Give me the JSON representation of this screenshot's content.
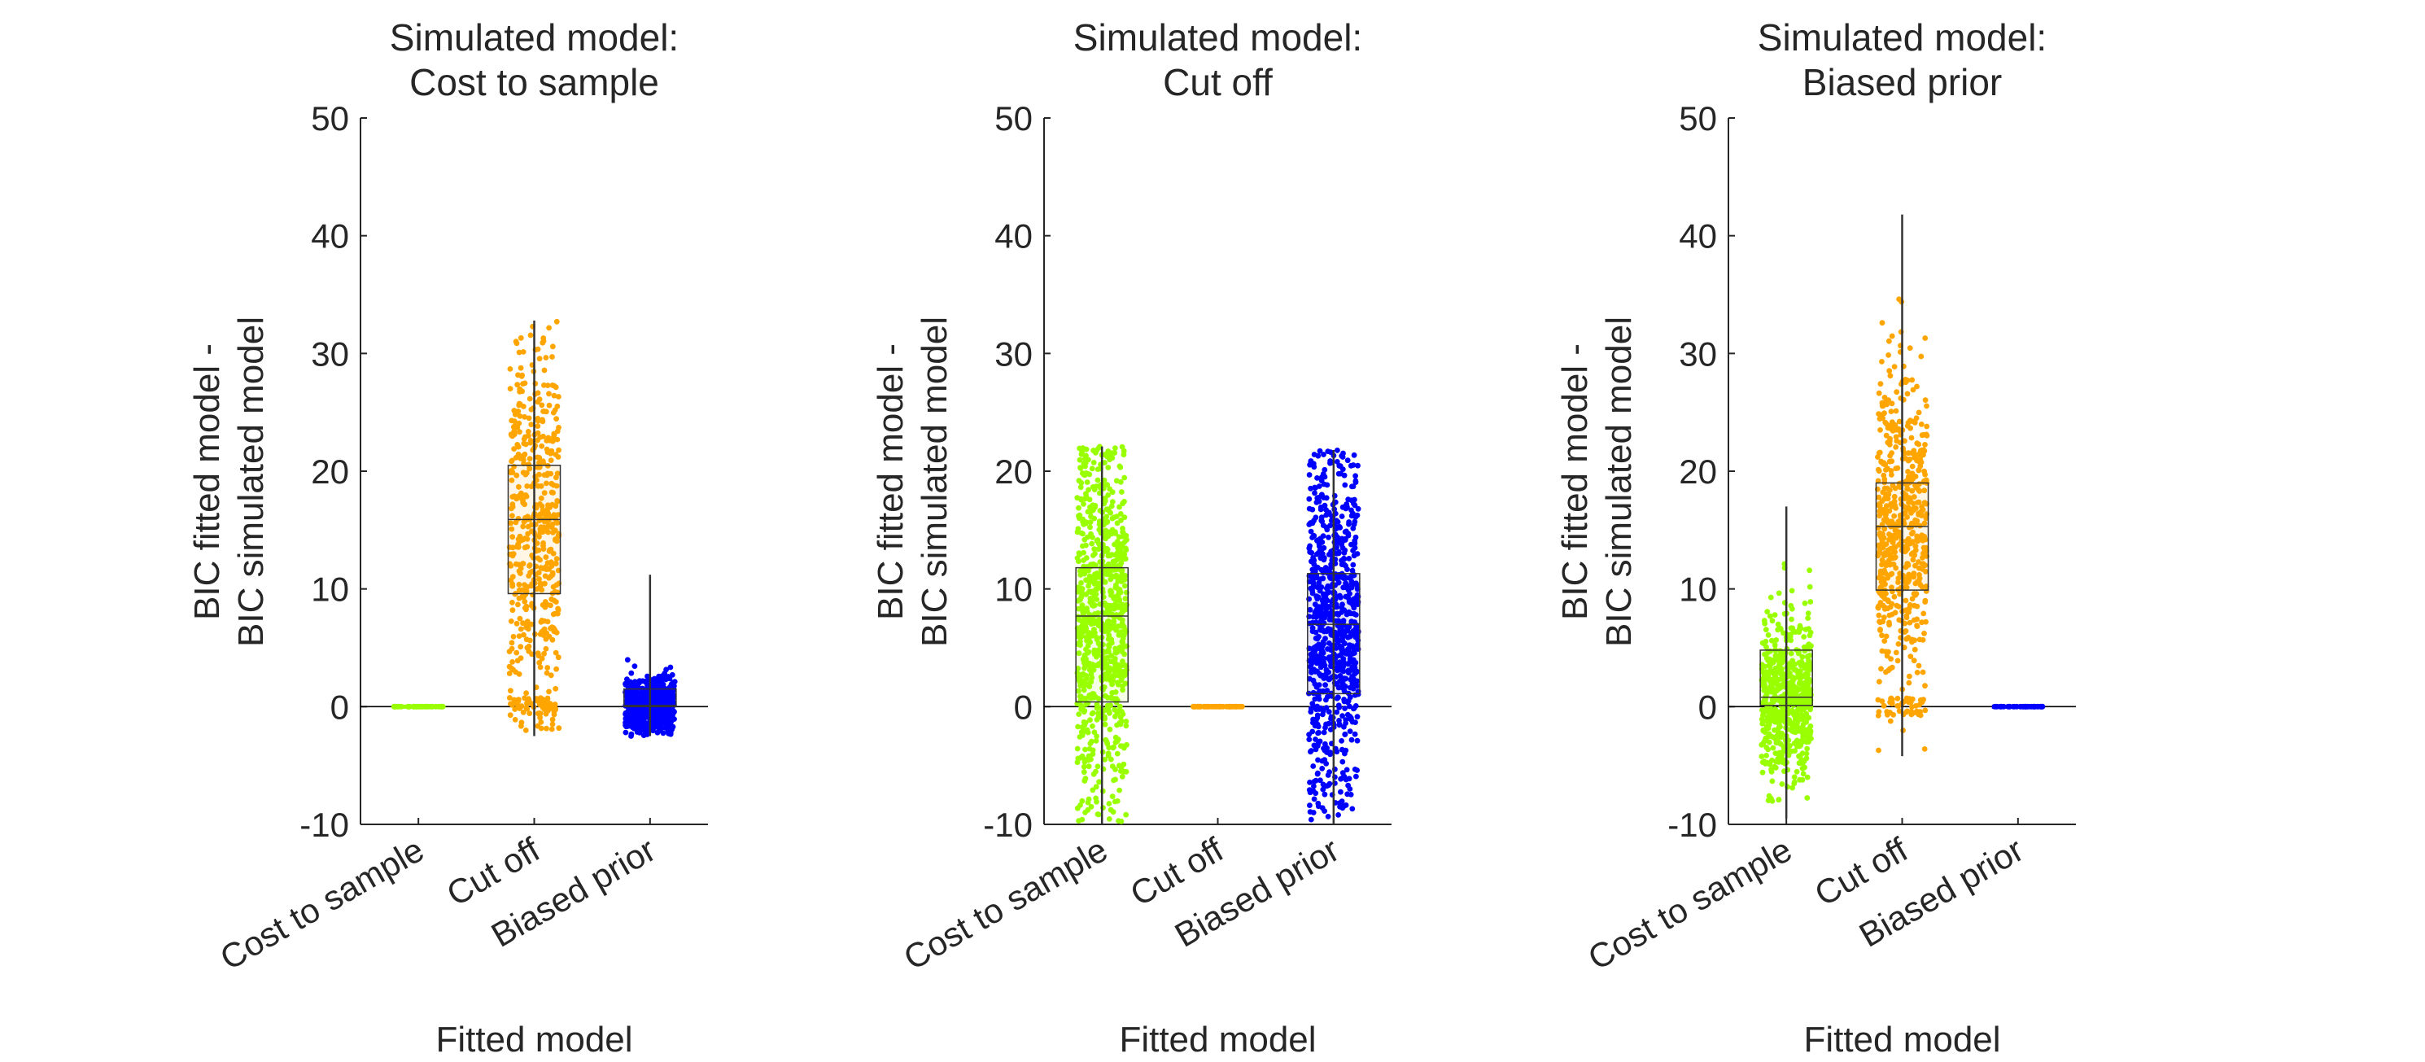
{
  "chart_data": [
    {
      "type": "box-strip",
      "title": [
        "Simulated model:",
        "Cost to sample"
      ],
      "xlabel": "Fitted model",
      "ylabel": [
        "BIC fitted model -",
        "BIC simulated model"
      ],
      "ylim": [
        -10,
        50
      ],
      "yticks": [
        -10,
        0,
        10,
        20,
        30,
        40,
        50
      ],
      "categories": [
        "Cost to sample",
        "Cut off",
        "Biased prior"
      ],
      "series": [
        {
          "name": "Cost to sample",
          "color": "#99ff00",
          "n_points": 40,
          "q1": 0,
          "median": 0,
          "q3": 0,
          "whisker_low": 0,
          "whisker_high": 0,
          "min": 0,
          "max": 0,
          "zero_cluster": 0
        },
        {
          "name": "Cut off",
          "color": "#ffa500",
          "n_points": 560,
          "q1": 9.6,
          "median": 15.9,
          "q3": 20.5,
          "whisker_low": -2.5,
          "whisker_high": 32.8,
          "min": -2.5,
          "max": 32.8,
          "zero_cluster": 0.1
        },
        {
          "name": "Biased prior",
          "color": "#0000ff",
          "n_points": 700,
          "q1": 0,
          "median": 0.1,
          "q3": 1.5,
          "whisker_low": -2.5,
          "whisker_high": 11.2,
          "min": -2.5,
          "max": 11.2,
          "zero_cluster": 0
        }
      ]
    },
    {
      "type": "box-strip",
      "title": [
        "Simulated model:",
        "Cut off"
      ],
      "xlabel": "Fitted model",
      "ylabel": [
        "BIC fitted model -",
        "BIC simulated model"
      ],
      "ylim": [
        -10,
        50
      ],
      "yticks": [
        -10,
        0,
        10,
        20,
        30,
        40,
        50
      ],
      "categories": [
        "Cost to sample",
        "Cut off",
        "Biased prior"
      ],
      "series": [
        {
          "name": "Cost to sample",
          "color": "#99ff00",
          "n_points": 820,
          "q1": 0.4,
          "median": 7.7,
          "q3": 11.8,
          "whisker_low": -10,
          "whisker_high": 22.1,
          "min": -10,
          "max": 22.1,
          "zero_cluster": 0
        },
        {
          "name": "Cut off",
          "color": "#ffa500",
          "n_points": 40,
          "q1": 0,
          "median": 0,
          "q3": 0,
          "whisker_low": 0,
          "whisker_high": 0,
          "min": 0,
          "max": 0,
          "zero_cluster": 0
        },
        {
          "name": "Biased prior",
          "color": "#0000ff",
          "n_points": 820,
          "q1": 1.1,
          "median": 7.0,
          "q3": 11.3,
          "whisker_low": -10,
          "whisker_high": 21.8,
          "min": -10,
          "max": 21.8,
          "zero_cluster": 0
        }
      ]
    },
    {
      "type": "box-strip",
      "title": [
        "Simulated model:",
        "Biased prior"
      ],
      "xlabel": "Fitted model",
      "ylabel": [
        "BIC fitted model -",
        "BIC simulated model"
      ],
      "ylim": [
        -10,
        50
      ],
      "yticks": [
        -10,
        0,
        10,
        20,
        30,
        40,
        50
      ],
      "categories": [
        "Cost to sample",
        "Cut off",
        "Biased prior"
      ],
      "series": [
        {
          "name": "Cost to sample",
          "color": "#99ff00",
          "n_points": 620,
          "q1": 0.1,
          "median": 0.8,
          "q3": 4.8,
          "whisker_low": -9.5,
          "whisker_high": 17,
          "min": -9.5,
          "max": 17,
          "zero_cluster": 0
        },
        {
          "name": "Cut off",
          "color": "#ffa500",
          "n_points": 620,
          "q1": 9.9,
          "median": 15.3,
          "q3": 19.0,
          "whisker_low": -4.2,
          "whisker_high": 41.8,
          "min": -4.2,
          "max": 41.8,
          "zero_cluster": 0.06
        },
        {
          "name": "Biased prior",
          "color": "#0000ff",
          "n_points": 40,
          "q1": 0,
          "median": 0,
          "q3": 0,
          "whisker_low": 0,
          "whisker_high": 0,
          "min": 0,
          "max": 0,
          "zero_cluster": 0
        }
      ]
    }
  ]
}
